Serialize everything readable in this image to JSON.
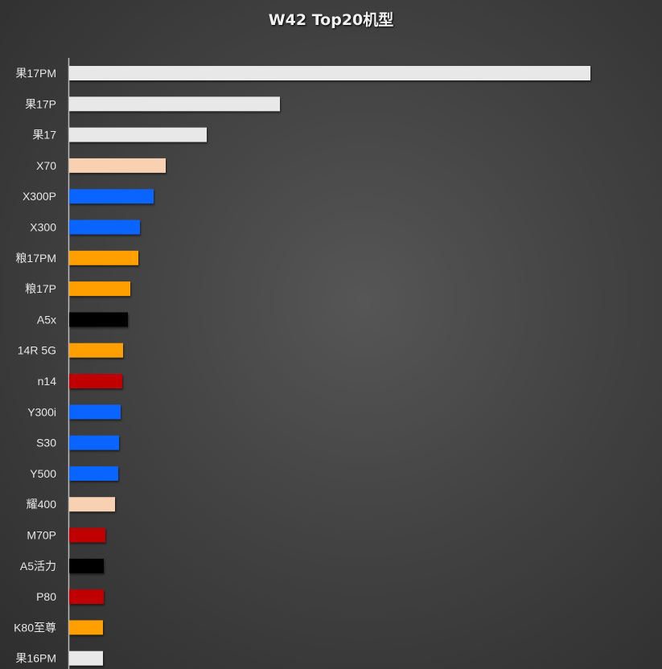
{
  "chart_data": {
    "type": "bar",
    "orientation": "horizontal",
    "title": "W42 Top20机型",
    "categories": [
      "果17PM",
      "果17P",
      "果17",
      "X70",
      "X300P",
      "X300",
      "粮17PM",
      "粮17P",
      "A5x",
      "14R 5G",
      "n14",
      "Y300i",
      "S30",
      "Y500",
      "耀400",
      "M70P",
      "A5活力",
      "P80",
      "K80至尊",
      "果16PM"
    ],
    "values": [
      648,
      262,
      171,
      120,
      105,
      88,
      86,
      76,
      73,
      67,
      66,
      64,
      62,
      61,
      57,
      45,
      43,
      43,
      42,
      42
    ],
    "value_note": "relative bar lengths; no value axis is printed",
    "colors": [
      "#e8e8e8",
      "#e8e8e8",
      "#e8e8e8",
      "#f8d0b2",
      "#0a64ff",
      "#0a64ff",
      "#ffa000",
      "#ffa000",
      "#000000",
      "#ffa000",
      "#c00000",
      "#0a64ff",
      "#0a64ff",
      "#0a64ff",
      "#f8d0b2",
      "#c00000",
      "#000000",
      "#c00000",
      "#ffa000",
      "#e8e8e8"
    ],
    "xlabel": "",
    "ylabel": "",
    "grid": false,
    "legend": "none"
  }
}
